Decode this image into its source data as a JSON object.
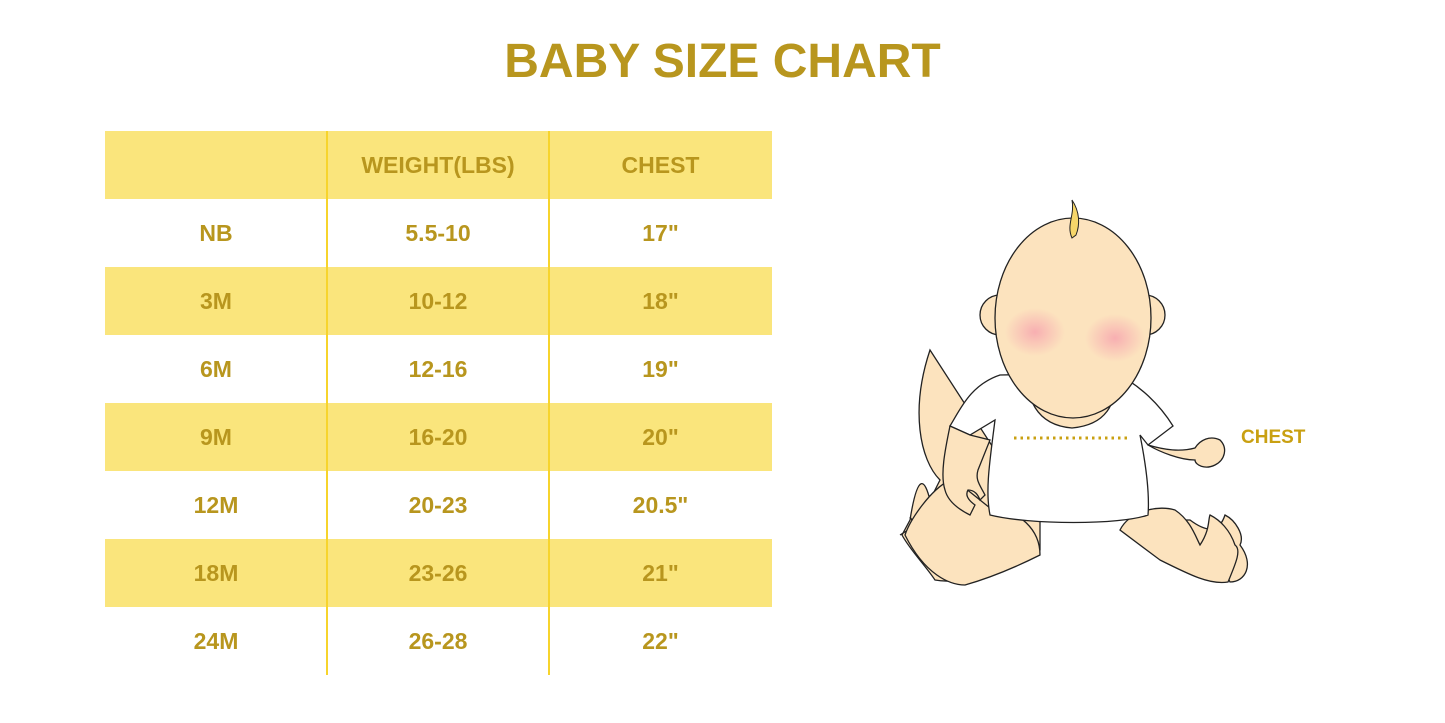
{
  "title": "BABY SIZE CHART",
  "table": {
    "headers": [
      "",
      "WEIGHT(LBS)",
      "CHEST"
    ],
    "rows": [
      [
        "NB",
        "5.5-10",
        "17\""
      ],
      [
        "3M",
        "10-12",
        "18\""
      ],
      [
        "6M",
        "12-16",
        "19\""
      ],
      [
        "9M",
        "16-20",
        "20\""
      ],
      [
        "12M",
        "20-23",
        "20.5\""
      ],
      [
        "18M",
        "23-26",
        "21\""
      ],
      [
        "24M",
        "26-28",
        "22\""
      ]
    ]
  },
  "illustration": {
    "chest_label": "CHEST"
  },
  "colors": {
    "text": "#B8961E",
    "band": "#FAE57C",
    "divider": "#F7D42C"
  }
}
